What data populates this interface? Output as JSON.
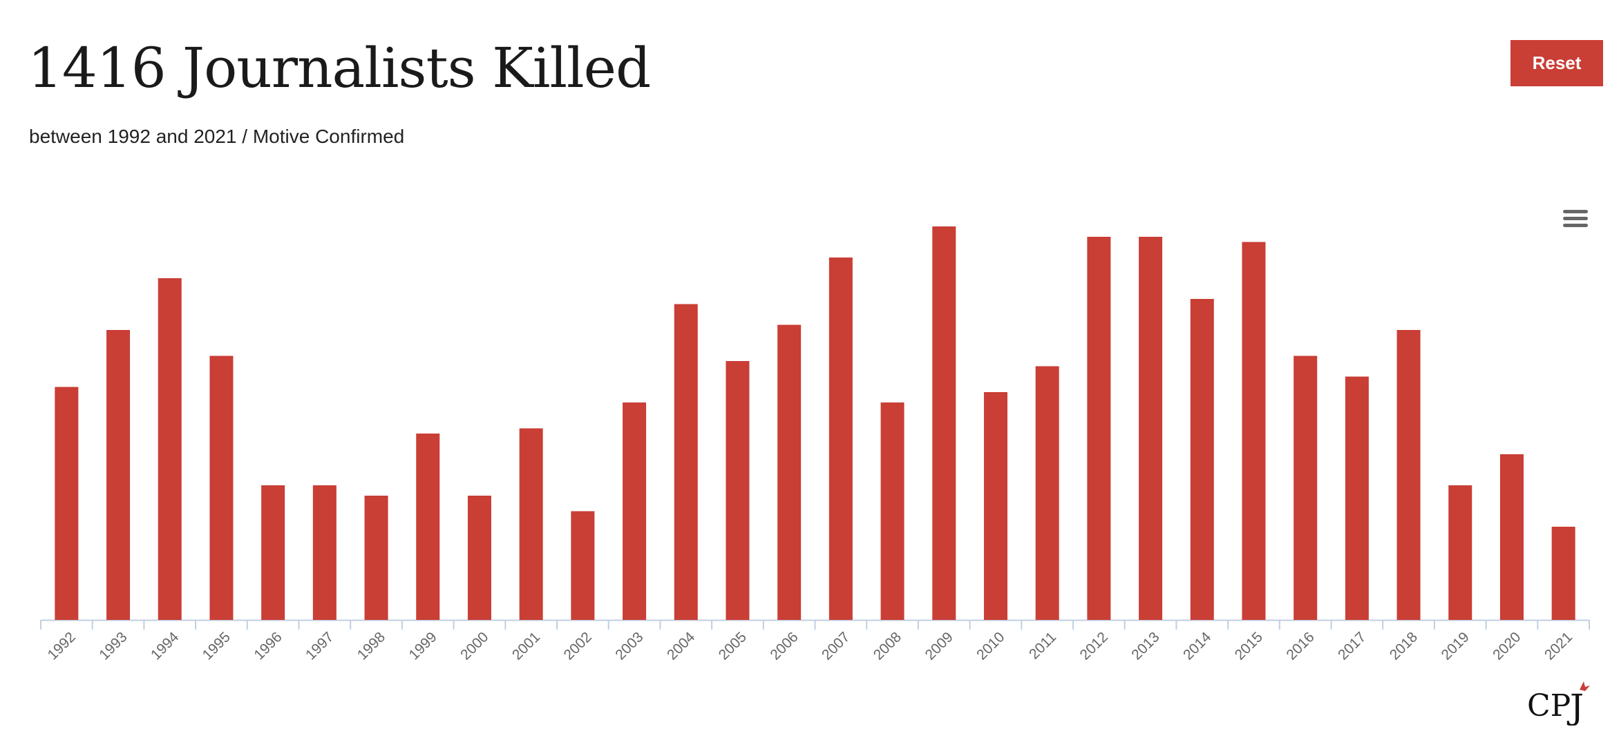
{
  "header": {
    "title": "1416 Journalists Killed",
    "subtitle": "between 1992 and 2021 / Motive Confirmed",
    "reset_label": "Reset"
  },
  "icons": {
    "menu": "hamburger-menu-icon",
    "logo": "cpj-logo"
  },
  "logo_text": "CPJ",
  "colors": {
    "bar": "#c93e35",
    "axis": "#c0cfe0",
    "label": "#666666"
  },
  "chart_data": {
    "type": "bar",
    "title": "1416 Journalists Killed",
    "subtitle": "between 1992 and 2021 / Motive Confirmed",
    "categories": [
      "1992",
      "1993",
      "1994",
      "1995",
      "1996",
      "1997",
      "1998",
      "1999",
      "2000",
      "2001",
      "2002",
      "2003",
      "2004",
      "2005",
      "2006",
      "2007",
      "2008",
      "2009",
      "2010",
      "2011",
      "2012",
      "2013",
      "2014",
      "2015",
      "2016",
      "2017",
      "2018",
      "2019",
      "2020",
      "2021"
    ],
    "values": [
      45,
      56,
      66,
      51,
      26,
      26,
      24,
      36,
      24,
      37,
      21,
      42,
      61,
      50,
      57,
      70,
      42,
      76,
      44,
      49,
      74,
      74,
      62,
      73,
      51,
      47,
      56,
      26,
      32,
      18
    ],
    "ylim": [
      0,
      80
    ],
    "grid": false,
    "legend": "none"
  }
}
